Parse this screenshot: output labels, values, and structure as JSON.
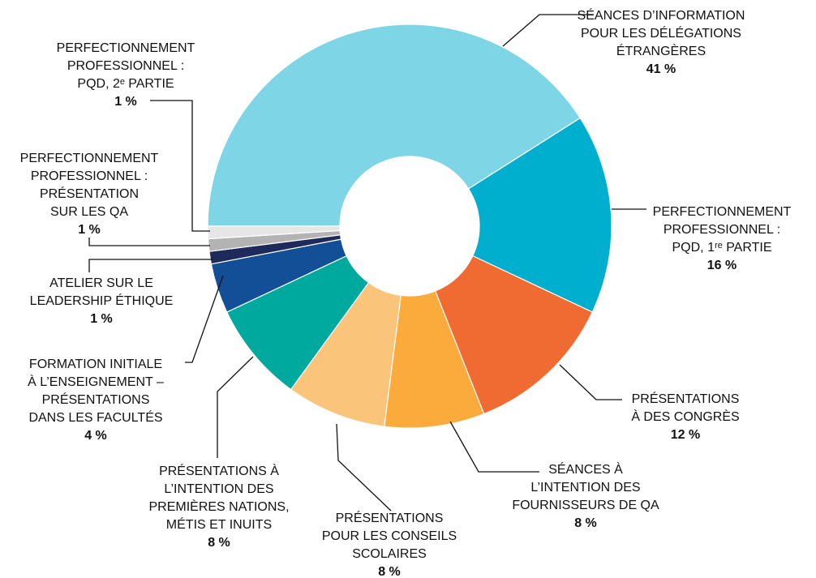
{
  "chart_data": {
    "type": "donut",
    "categories": [
      [
        "SÉANCES D’INFORMATION",
        "POUR LES DÉLÉGATIONS",
        "ÉTRANGÈRES"
      ],
      [
        "PERFECTIONNEMENT",
        "PROFESSIONNEL :",
        "PQD, 1ʳᵉ PARTIE"
      ],
      [
        "PRÉSENTATIONS",
        "À DES CONGRÈS"
      ],
      [
        "SÉANCES À",
        "L’INTENTION DES",
        "FOURNISSEURS DE QA"
      ],
      [
        "PRÉSENTATIONS",
        "POUR LES CONSEILS",
        "SCOLAIRES"
      ],
      [
        "PRÉSENTATIONS À",
        "L’INTENTION DES",
        "PREMIÈRES NATIONS,",
        "MÉTIS ET INUITS"
      ],
      [
        "FORMATION INITIALE",
        "À L’ENSEIGNEMENT –",
        "PRÉSENTATIONS",
        "DANS LES FACULTÉS"
      ],
      [
        "ATELIER SUR LE",
        "LEADERSHIP ÉTHIQUE"
      ],
      [
        "PERFECTIONNEMENT",
        "PROFESSIONNEL :",
        "PRÉSENTATION",
        "SUR LES QA"
      ],
      [
        "PERFECTIONNEMENT",
        "PROFESSIONNEL :",
        "PQD, 2ᵉ PARTIE"
      ]
    ],
    "values": [
      41,
      16,
      12,
      8,
      8,
      8,
      4,
      1,
      1,
      1
    ],
    "value_labels": [
      "41 %",
      "16 %",
      "12 %",
      "8 %",
      "8 %",
      "8 %",
      "4 %",
      "1 %",
      "1 %",
      "1 %"
    ],
    "colors": [
      "#7dd5e5",
      "#00aecd",
      "#f06b31",
      "#fbab3c",
      "#fac57a",
      "#00a99d",
      "#134f97",
      "#1f2a5c",
      "#b3b3b3",
      "#e6e6e6"
    ]
  }
}
